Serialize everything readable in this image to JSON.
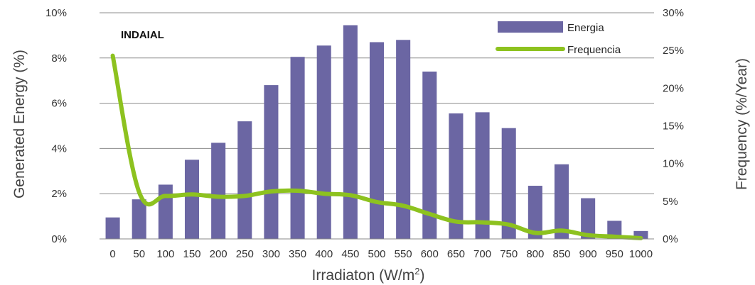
{
  "chart_data": {
    "type": "bar",
    "annotation": "INDAIAL",
    "xlabel": "Irradiaton (W/m",
    "xlabel_sup": "2",
    "xlabel_end": ")",
    "ylabel": "Generated Energy (%)",
    "y2label": "Frequency (%/Year)",
    "categories": [
      "0",
      "50",
      "100",
      "150",
      "200",
      "250",
      "300",
      "350",
      "400",
      "450",
      "500",
      "550",
      "600",
      "650",
      "700",
      "750",
      "800",
      "850",
      "900",
      "950",
      "1000"
    ],
    "ylim": [
      0,
      10
    ],
    "y2lim": [
      0,
      30
    ],
    "yticks": [
      "0%",
      "2%",
      "4%",
      "6%",
      "8%",
      "10%"
    ],
    "y2ticks": [
      "0%",
      "5%",
      "10%",
      "15%",
      "20%",
      "25%",
      "30%"
    ],
    "grid": true,
    "legend_position": "top-right",
    "colors": {
      "bar": "#6b66a3",
      "line": "#8dc21f"
    },
    "series": [
      {
        "name": "Energia",
        "type": "bar",
        "axis": "left",
        "values": [
          0.95,
          1.75,
          2.4,
          3.5,
          4.25,
          5.2,
          6.8,
          8.05,
          8.55,
          9.45,
          8.7,
          8.8,
          7.4,
          5.55,
          5.6,
          4.9,
          2.35,
          3.3,
          1.8,
          0.8,
          0.35
        ]
      },
      {
        "name": "Frequencia",
        "type": "line",
        "axis": "right",
        "values": [
          24.3,
          6.2,
          5.7,
          5.9,
          5.6,
          5.7,
          6.3,
          6.4,
          6.0,
          5.8,
          4.9,
          4.4,
          3.3,
          2.3,
          2.2,
          1.9,
          0.8,
          1.1,
          0.5,
          0.3,
          0.1
        ]
      }
    ]
  }
}
